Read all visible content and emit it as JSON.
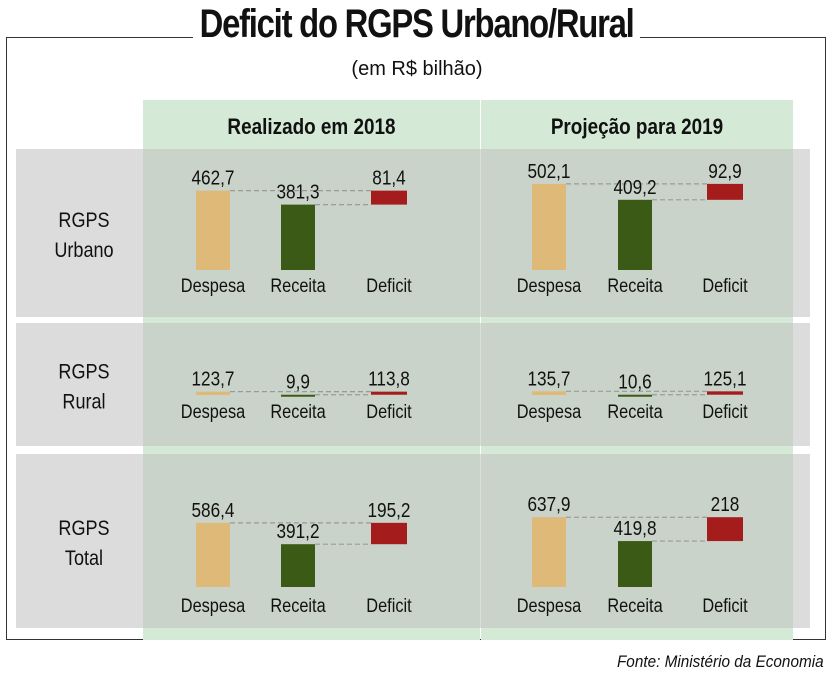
{
  "header": {
    "title": "Deficit do RGPS Urbano/Rural",
    "subtitle": "(em R$ bilhão)",
    "source": "Fonte: Ministério da Economia"
  },
  "chart_data": {
    "type": "bar",
    "columns": [
      "Realizado em 2018",
      "Projeção para 2019"
    ],
    "rows": [
      {
        "label_lines": [
          "RGPS",
          "Urbano"
        ]
      },
      {
        "label_lines": [
          "RGPS",
          "Rural"
        ]
      },
      {
        "label_lines": [
          "RGPS",
          "Total"
        ]
      }
    ],
    "categories": [
      "Despesa",
      "Receita",
      "Deficit"
    ],
    "panels": [
      {
        "row": 0,
        "col": 0,
        "values": [
          462.7,
          381.3,
          81.4
        ],
        "labels": [
          "462,7",
          "381,3",
          "81,4"
        ]
      },
      {
        "row": 0,
        "col": 1,
        "values": [
          502.1,
          409.2,
          92.9
        ],
        "labels": [
          "502,1",
          "409,2",
          "92,9"
        ]
      },
      {
        "row": 1,
        "col": 0,
        "values": [
          123.7,
          9.9,
          113.8
        ],
        "labels": [
          "123,7",
          "9,9",
          "113,8"
        ]
      },
      {
        "row": 1,
        "col": 1,
        "values": [
          135.7,
          10.6,
          125.1
        ],
        "labels": [
          "135,7",
          "10,6",
          "125,1"
        ]
      },
      {
        "row": 2,
        "col": 0,
        "values": [
          586.4,
          391.2,
          195.2
        ],
        "labels": [
          "586,4",
          "391,2",
          "195,2"
        ]
      },
      {
        "row": 2,
        "col": 1,
        "values": [
          637.9,
          419.8,
          218
        ],
        "labels": [
          "637,9",
          "419,8",
          "218"
        ]
      }
    ],
    "colors": {
      "despesa": "#dfb978",
      "receita": "#3a5a16",
      "deficit": "#a51c1c",
      "row_bg": "#dcdcdc",
      "col_bg": "#d4ead6",
      "overlap_bg": "#c9d3c9",
      "connector": "#9a9a9a"
    }
  }
}
